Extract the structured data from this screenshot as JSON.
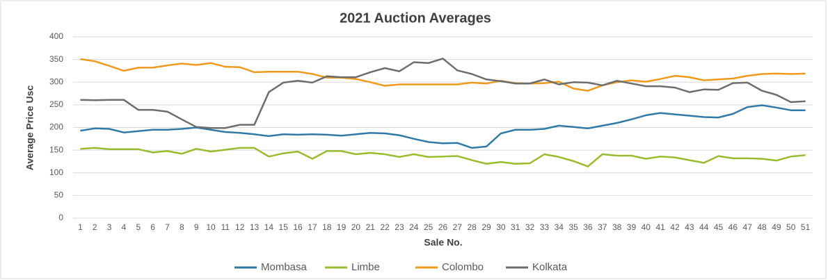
{
  "chart_data": {
    "type": "line",
    "title": "2021 Auction Averages",
    "x_label": "Sale No.",
    "y_label": "Average Price Usc",
    "categories": [
      "1",
      "2",
      "3",
      "4",
      "5",
      "6",
      "7",
      "8",
      "9",
      "10",
      "11",
      "12",
      "13",
      "14",
      "15",
      "16",
      "17",
      "18",
      "19",
      "20",
      "21",
      "22",
      "23",
      "24",
      "25",
      "26",
      "27",
      "28",
      "29",
      "30",
      "31",
      "32",
      "33",
      "34",
      "35",
      "36",
      "37",
      "38",
      "39",
      "40",
      "41",
      "42",
      "43",
      "44",
      "45",
      "46",
      "47",
      "48",
      "49",
      "50",
      "51"
    ],
    "series": [
      {
        "name": "Mombasa",
        "color": "#2f7aa6",
        "values": [
          193,
          198,
          197,
          189,
          192,
          195,
          195,
          197,
          200,
          195,
          190,
          188,
          185,
          181,
          185,
          184,
          185,
          184,
          182,
          185,
          188,
          187,
          183,
          175,
          168,
          165,
          166,
          155,
          158,
          187,
          195,
          195,
          197,
          204,
          201,
          198,
          204,
          210,
          218,
          227,
          232,
          229,
          226,
          223,
          222,
          230,
          245,
          249,
          244,
          238,
          238
        ]
      },
      {
        "name": "Limbe",
        "color": "#9bbb2e",
        "values": [
          153,
          155,
          152,
          152,
          152,
          145,
          148,
          142,
          153,
          147,
          151,
          155,
          155,
          136,
          143,
          147,
          131,
          148,
          148,
          141,
          144,
          141,
          135,
          141,
          135,
          136,
          137,
          128,
          120,
          124,
          120,
          121,
          141,
          135,
          126,
          114,
          141,
          138,
          138,
          131,
          136,
          134,
          128,
          122,
          137,
          132,
          132,
          131,
          127,
          136,
          139
        ]
      },
      {
        "name": "Colombo",
        "color": "#ee9a1e",
        "values": [
          351,
          346,
          336,
          325,
          332,
          332,
          337,
          341,
          338,
          342,
          334,
          333,
          322,
          323,
          323,
          323,
          318,
          310,
          310,
          307,
          300,
          292,
          295,
          295,
          295,
          295,
          295,
          299,
          297,
          303,
          298,
          297,
          298,
          301,
          286,
          281,
          293,
          300,
          304,
          301,
          307,
          314,
          311,
          304,
          306,
          308,
          314,
          318,
          319,
          318,
          319
        ]
      },
      {
        "name": "Kolkata",
        "color": "#6d6d6d",
        "values": [
          261,
          260,
          261,
          261,
          239,
          239,
          235,
          218,
          201,
          199,
          199,
          206,
          206,
          278,
          299,
          303,
          299,
          313,
          311,
          311,
          322,
          331,
          324,
          344,
          342,
          352,
          326,
          318,
          306,
          302,
          297,
          297,
          306,
          295,
          300,
          299,
          293,
          303,
          297,
          291,
          291,
          288,
          278,
          284,
          283,
          298,
          299,
          281,
          272,
          256,
          258
        ]
      }
    ],
    "ylim": [
      0,
      400
    ],
    "yticks": [
      0,
      50,
      100,
      150,
      200,
      250,
      300,
      350,
      400
    ],
    "grid": true,
    "legend": "bottom"
  }
}
